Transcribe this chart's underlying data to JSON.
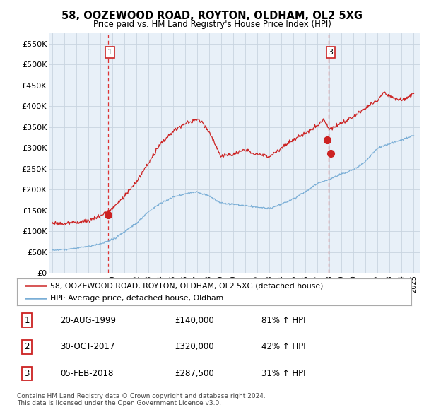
{
  "title": "58, OOZEWOOD ROAD, ROYTON, OLDHAM, OL2 5XG",
  "subtitle": "Price paid vs. HM Land Registry's House Price Index (HPI)",
  "ylabel_values": [
    0,
    50000,
    100000,
    150000,
    200000,
    250000,
    300000,
    350000,
    400000,
    450000,
    500000,
    550000
  ],
  "ylabel_labels": [
    "£0",
    "£50K",
    "£100K",
    "£150K",
    "£200K",
    "£250K",
    "£300K",
    "£350K",
    "£400K",
    "£450K",
    "£500K",
    "£550K"
  ],
  "xlim": [
    1994.7,
    2025.5
  ],
  "ylim": [
    0,
    575000
  ],
  "hpi_color": "#cc2222",
  "avg_color": "#7aaed6",
  "vline_color": "#dd3333",
  "legend_line1": "58, OOZEWOOD ROAD, ROYTON, OLDHAM, OL2 5XG (detached house)",
  "legend_line2": "HPI: Average price, detached house, Oldham",
  "table_rows": [
    {
      "num": "1",
      "date": "20-AUG-1999",
      "price": "£140,000",
      "change": "81% ↑ HPI"
    },
    {
      "num": "2",
      "date": "30-OCT-2017",
      "price": "£320,000",
      "change": "42% ↑ HPI"
    },
    {
      "num": "3",
      "date": "05-FEB-2018",
      "price": "£287,500",
      "change": "31% ↑ HPI"
    }
  ],
  "footnote1": "Contains HM Land Registry data © Crown copyright and database right 2024.",
  "footnote2": "This data is licensed under the Open Government Licence v3.0.",
  "sale1_x": 1999.64,
  "sale1_y": 140000,
  "sale2_x": 2017.83,
  "sale2_y": 320000,
  "sale3_x": 2018.09,
  "sale3_y": 287500,
  "vline1_x": 1999.64,
  "vline2_x": 2017.95,
  "background_color": "#ffffff",
  "chart_bg_color": "#e8f0f8",
  "grid_color": "#c8d4e0"
}
